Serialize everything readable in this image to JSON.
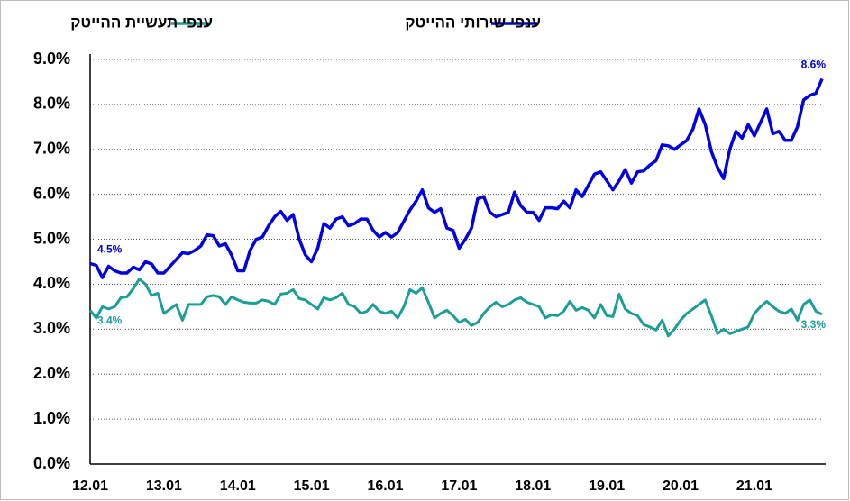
{
  "chart_data": {
    "type": "line",
    "categories": [
      "12.01",
      null,
      null,
      null,
      null,
      null,
      null,
      null,
      null,
      null,
      null,
      null,
      "13.01",
      null,
      null,
      null,
      null,
      null,
      null,
      null,
      null,
      null,
      null,
      null,
      "14.01",
      null,
      null,
      null,
      null,
      null,
      null,
      null,
      null,
      null,
      null,
      null,
      "15.01",
      null,
      null,
      null,
      null,
      null,
      null,
      null,
      null,
      null,
      null,
      null,
      "16.01",
      null,
      null,
      null,
      null,
      null,
      null,
      null,
      null,
      null,
      null,
      null,
      "17.01",
      null,
      null,
      null,
      null,
      null,
      null,
      null,
      null,
      null,
      null,
      null,
      "18.01",
      null,
      null,
      null,
      null,
      null,
      null,
      null,
      null,
      null,
      null,
      null,
      "19.01",
      null,
      null,
      null,
      null,
      null,
      null,
      null,
      null,
      null,
      null,
      null,
      "20.01",
      null,
      null,
      null,
      null,
      null,
      null,
      null,
      null,
      null,
      null,
      null,
      "21.01",
      null,
      null,
      null,
      null,
      null,
      null,
      null,
      null,
      null,
      null,
      null
    ],
    "series": [
      {
        "name": "ענפי שירותי ההייטק",
        "color": "#0000e0",
        "values": [
          4.46,
          4.42,
          4.15,
          4.4,
          4.3,
          4.25,
          4.25,
          4.38,
          4.32,
          4.5,
          4.45,
          4.25,
          4.25,
          4.4,
          4.55,
          4.7,
          4.68,
          4.75,
          4.85,
          5.1,
          5.08,
          4.85,
          4.9,
          4.65,
          4.3,
          4.3,
          4.75,
          5.0,
          5.05,
          5.3,
          5.5,
          5.62,
          5.42,
          5.55,
          5.0,
          4.65,
          4.5,
          4.8,
          5.35,
          5.25,
          5.45,
          5.5,
          5.3,
          5.35,
          5.45,
          5.45,
          5.2,
          5.05,
          5.15,
          5.05,
          5.15,
          5.4,
          5.65,
          5.85,
          6.1,
          5.7,
          5.6,
          5.68,
          5.25,
          5.2,
          4.8,
          5.0,
          5.25,
          5.9,
          5.95,
          5.6,
          5.5,
          5.55,
          5.6,
          6.05,
          5.75,
          5.6,
          5.6,
          5.42,
          5.7,
          5.7,
          5.68,
          5.85,
          5.7,
          6.1,
          5.95,
          6.2,
          6.45,
          6.5,
          6.3,
          6.1,
          6.3,
          6.55,
          6.25,
          6.5,
          6.52,
          6.65,
          6.75,
          7.1,
          7.08,
          7.0,
          7.1,
          7.2,
          7.45,
          7.9,
          7.55,
          6.95,
          6.6,
          6.35,
          7.0,
          7.4,
          7.25,
          7.55,
          7.3,
          7.6,
          7.9,
          7.35,
          7.4,
          7.2,
          7.2,
          7.5,
          8.1,
          8.2,
          8.25,
          8.57
        ],
        "value_labels": [
          "4.5%",
          null,
          null,
          null,
          null,
          null,
          null,
          null,
          null,
          null,
          null,
          null,
          null,
          null,
          null,
          null,
          null,
          null,
          null,
          null,
          null,
          null,
          null,
          null,
          null,
          null,
          null,
          null,
          null,
          null,
          null,
          null,
          null,
          null,
          null,
          null,
          null,
          null,
          null,
          null,
          null,
          null,
          null,
          null,
          null,
          null,
          null,
          null,
          null,
          null,
          null,
          null,
          null,
          null,
          null,
          null,
          null,
          null,
          null,
          null,
          null,
          null,
          null,
          null,
          null,
          null,
          null,
          null,
          null,
          null,
          null,
          null,
          null,
          null,
          null,
          null,
          null,
          null,
          null,
          null,
          null,
          null,
          null,
          null,
          null,
          null,
          null,
          null,
          null,
          null,
          null,
          null,
          null,
          null,
          null,
          null,
          null,
          null,
          null,
          null,
          null,
          null,
          null,
          null,
          null,
          null,
          null,
          null,
          null,
          null,
          null,
          null,
          null,
          null,
          null,
          null,
          null,
          null,
          null,
          "8.6%"
        ]
      },
      {
        "name": "ענפי תעשיית ההייטק",
        "color": "#1a9e96",
        "values": [
          3.42,
          3.25,
          3.5,
          3.45,
          3.5,
          3.7,
          3.72,
          3.9,
          4.12,
          4.0,
          3.75,
          3.8,
          3.35,
          3.45,
          3.55,
          3.2,
          3.55,
          3.55,
          3.55,
          3.72,
          3.75,
          3.72,
          3.55,
          3.72,
          3.65,
          3.6,
          3.58,
          3.58,
          3.65,
          3.62,
          3.55,
          3.78,
          3.8,
          3.88,
          3.68,
          3.65,
          3.55,
          3.45,
          3.7,
          3.65,
          3.7,
          3.8,
          3.55,
          3.5,
          3.35,
          3.4,
          3.55,
          3.4,
          3.35,
          3.4,
          3.25,
          3.5,
          3.88,
          3.8,
          3.92,
          3.6,
          3.25,
          3.35,
          3.42,
          3.3,
          3.15,
          3.22,
          3.08,
          3.15,
          3.35,
          3.5,
          3.6,
          3.5,
          3.55,
          3.65,
          3.7,
          3.6,
          3.55,
          3.5,
          3.25,
          3.32,
          3.3,
          3.4,
          3.62,
          3.42,
          3.48,
          3.42,
          3.25,
          3.55,
          3.3,
          3.28,
          3.78,
          3.45,
          3.35,
          3.3,
          3.1,
          3.05,
          2.98,
          3.2,
          2.85,
          3.0,
          3.2,
          3.35,
          3.45,
          3.55,
          3.65,
          3.3,
          2.9,
          3.0,
          2.9,
          2.95,
          3.0,
          3.05,
          3.35,
          3.5,
          3.62,
          3.5,
          3.4,
          3.35,
          3.45,
          3.2,
          3.55,
          3.65,
          3.4,
          3.33
        ],
        "value_labels": [
          "3.4%",
          null,
          null,
          null,
          null,
          null,
          null,
          null,
          null,
          null,
          null,
          null,
          null,
          null,
          null,
          null,
          null,
          null,
          null,
          null,
          null,
          null,
          null,
          null,
          null,
          null,
          null,
          null,
          null,
          null,
          null,
          null,
          null,
          null,
          null,
          null,
          null,
          null,
          null,
          null,
          null,
          null,
          null,
          null,
          null,
          null,
          null,
          null,
          null,
          null,
          null,
          null,
          null,
          null,
          null,
          null,
          null,
          null,
          null,
          null,
          null,
          null,
          null,
          null,
          null,
          null,
          null,
          null,
          null,
          null,
          null,
          null,
          null,
          null,
          null,
          null,
          null,
          null,
          null,
          null,
          null,
          null,
          null,
          null,
          null,
          null,
          null,
          null,
          null,
          null,
          null,
          null,
          null,
          null,
          null,
          null,
          null,
          null,
          null,
          null,
          null,
          null,
          null,
          null,
          null,
          null,
          null,
          null,
          null,
          null,
          null,
          null,
          null,
          null,
          null,
          null,
          null,
          null,
          null,
          "3.3%"
        ]
      }
    ],
    "ylim": [
      0,
      9
    ],
    "yticks": [
      {
        "value": 0,
        "label": "0.0%"
      },
      {
        "value": 1,
        "label": "1.0%"
      },
      {
        "value": 2,
        "label": "2.0%"
      },
      {
        "value": 3,
        "label": "3.0%"
      },
      {
        "value": 4,
        "label": "4.0%"
      },
      {
        "value": 5,
        "label": "5.0%"
      },
      {
        "value": 6,
        "label": "6.0%"
      },
      {
        "value": 7,
        "label": "7.0%"
      },
      {
        "value": 8,
        "label": "8.0%"
      },
      {
        "value": 9,
        "label": "9.0%"
      }
    ],
    "grid": true,
    "legend": "top"
  }
}
